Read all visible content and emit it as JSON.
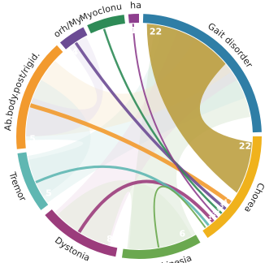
{
  "segments": [
    {
      "id": "gait",
      "label": "Gait disorder",
      "count": "22",
      "color": "#2f7ea6"
    },
    {
      "id": "chorea",
      "label": "Chorea",
      "count": "22",
      "color": "#f0b21c"
    },
    {
      "id": "brady",
      "label": "Bradykinesia",
      "count": "6",
      "color": "#6aa84f"
    },
    {
      "id": "dystonia",
      "label": "Dystonia",
      "count": "8",
      "color": "#9b3c7c"
    },
    {
      "id": "tremor",
      "label": "Tremor",
      "count": "5",
      "color": "#5fb7b2"
    },
    {
      "id": "abbody",
      "label": "Ab.body.post/rigid.",
      "count": "5",
      "color": "#f29a2e"
    },
    {
      "id": "myorh",
      "label": "Myorh/Myok",
      "count": "4",
      "color": "#6b4b94"
    },
    {
      "id": "myoclonus",
      "label": "Myoclonus",
      "count": "3",
      "color": "#2e8b57"
    },
    {
      "id": "akhat",
      "label": "Akhat.",
      "count": "1",
      "color": "#8e3f8e"
    }
  ],
  "chorea_stack_counts": [
    "5",
    "4",
    "3",
    "3",
    "2",
    "1"
  ],
  "links": [
    {
      "from": "gait",
      "to": "chorea",
      "color": "#b59a3a"
    },
    {
      "from": "abbody",
      "to": "chorea",
      "color": "#f29a2e"
    },
    {
      "from": "myorh",
      "to": "chorea",
      "color": "#6b4b94"
    },
    {
      "from": "myoclonus",
      "to": "chorea",
      "color": "#2e8b57"
    },
    {
      "from": "akhat",
      "to": "chorea",
      "color": "#8e3f8e"
    },
    {
      "from": "dystonia",
      "to": "chorea",
      "color": "#9b3c7c"
    },
    {
      "from": "tremor",
      "to": "chorea",
      "color": "#5fb7b2"
    },
    {
      "from": "brady",
      "to": "gait",
      "color": "#a8c98a"
    },
    {
      "from": "tremor",
      "to": "gait",
      "color": "#bfdede"
    },
    {
      "from": "dystonia",
      "to": "gait",
      "color": "#d7b4cf"
    },
    {
      "from": "abbody",
      "to": "gait",
      "color": "#f6d7a8"
    }
  ]
}
